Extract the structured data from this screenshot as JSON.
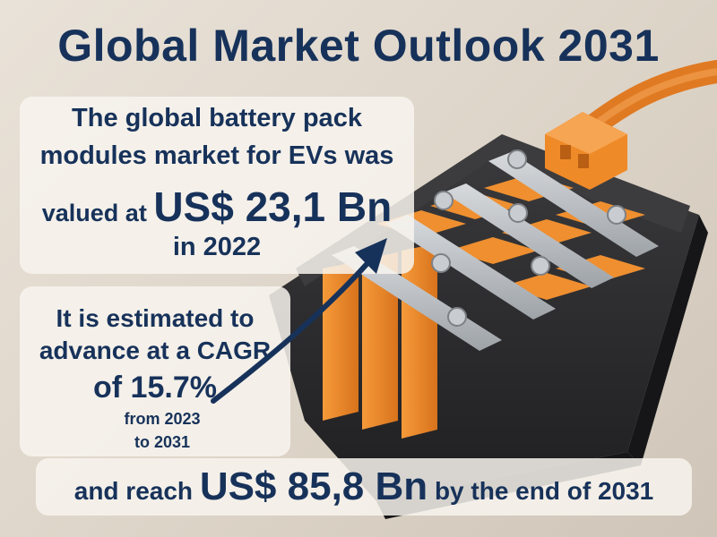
{
  "title": "Global Market Outlook 2031",
  "panel_top": {
    "line1": "The global battery pack",
    "line2": "modules market for EVs was",
    "line3_prefix": "valued at",
    "value": "US$ 23,1 Bn",
    "line4": "in 2022"
  },
  "panel_middle": {
    "line1": "It is estimated to",
    "line2": "advance at a CAGR",
    "line3": "of 15.7%",
    "line4": "from 2023",
    "line5": "to 2031"
  },
  "panel_bottom": {
    "prefix": "and reach",
    "value": "US$ 85,8 Bn",
    "suffix": "by the end of 2031"
  },
  "colors": {
    "navy": "#17325a",
    "orange": "#ee8a2a",
    "casing": "#2b2b2d",
    "metal": "#b8bcc0"
  }
}
